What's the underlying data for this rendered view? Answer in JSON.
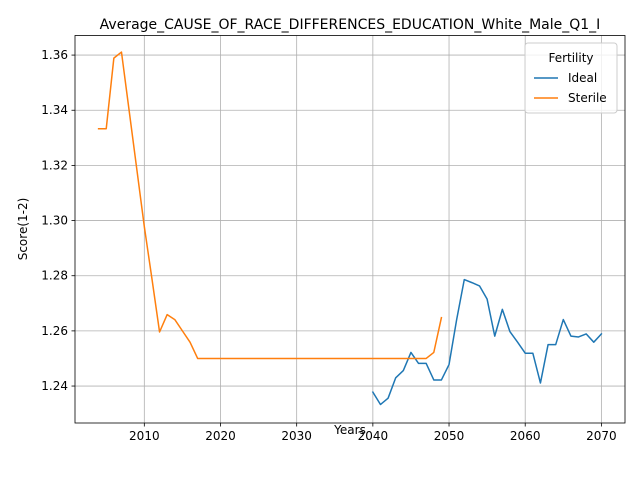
{
  "chart_data": {
    "type": "line",
    "title": "Average_CAUSE_OF_RACE_DIFFERENCES_EDUCATION_White_Male_Q1_I",
    "xlabel": "Years",
    "ylabel": "Score(1-2)",
    "xlim": [
      2000.9,
      2073.1
    ],
    "ylim": [
      1.2266,
      1.3671
    ],
    "x_ticks": [
      2010,
      2020,
      2030,
      2040,
      2050,
      2060,
      2070
    ],
    "x_tick_labels": [
      "2010",
      "2020",
      "2030",
      "2040",
      "2050",
      "2060",
      "2070"
    ],
    "y_ticks": [
      1.24,
      1.26,
      1.28,
      1.3,
      1.32,
      1.34,
      1.36
    ],
    "y_tick_labels": [
      "1.24",
      "1.26",
      "1.28",
      "1.30",
      "1.32",
      "1.34",
      "1.36"
    ],
    "grid": true,
    "legend": {
      "title": "Fertility",
      "placement": "top-right"
    },
    "series": [
      {
        "name": "Ideal",
        "color": "#1f77b4",
        "x": [
          2040,
          2041,
          2042,
          2043,
          2044,
          2045,
          2046,
          2047,
          2048,
          2049,
          2050,
          2051,
          2052,
          2053,
          2054,
          2055,
          2056,
          2057,
          2058,
          2059,
          2060,
          2061,
          2062,
          2063,
          2064,
          2065,
          2066,
          2067,
          2068,
          2069,
          2070
        ],
        "values": [
          1.2378,
          1.2333,
          1.2356,
          1.243,
          1.2456,
          1.2522,
          1.2482,
          1.2482,
          1.2422,
          1.2422,
          1.2478,
          1.2641,
          1.2786,
          1.2775,
          1.2763,
          1.2715,
          1.2581,
          1.2678,
          1.2597,
          1.2559,
          1.2519,
          1.2519,
          1.2411,
          1.255,
          1.255,
          1.2641,
          1.2581,
          1.2578,
          1.2589,
          1.2559,
          1.2589
        ]
      },
      {
        "name": "Sterile",
        "color": "#ff7f0e",
        "x": [
          2004,
          2005,
          2006,
          2007,
          2008,
          2009,
          2010,
          2011,
          2012,
          2013,
          2014,
          2015,
          2016,
          2017,
          2018,
          2019,
          2020,
          2021,
          2022,
          2023,
          2024,
          2025,
          2026,
          2027,
          2028,
          2029,
          2030,
          2031,
          2032,
          2033,
          2034,
          2035,
          2036,
          2037,
          2038,
          2039,
          2040,
          2041,
          2042,
          2043,
          2044,
          2045,
          2046,
          2047,
          2048,
          2049
        ],
        "values": [
          1.3333,
          1.3333,
          1.3589,
          1.3611,
          1.34,
          1.3189,
          1.2978,
          1.2789,
          1.2596,
          1.2659,
          1.2641,
          1.26,
          1.2559,
          1.25,
          1.25,
          1.25,
          1.25,
          1.25,
          1.25,
          1.25,
          1.25,
          1.25,
          1.25,
          1.25,
          1.25,
          1.25,
          1.25,
          1.25,
          1.25,
          1.25,
          1.25,
          1.25,
          1.25,
          1.25,
          1.25,
          1.25,
          1.25,
          1.25,
          1.25,
          1.25,
          1.25,
          1.25,
          1.25,
          1.25,
          1.2522,
          1.2648
        ]
      }
    ]
  }
}
